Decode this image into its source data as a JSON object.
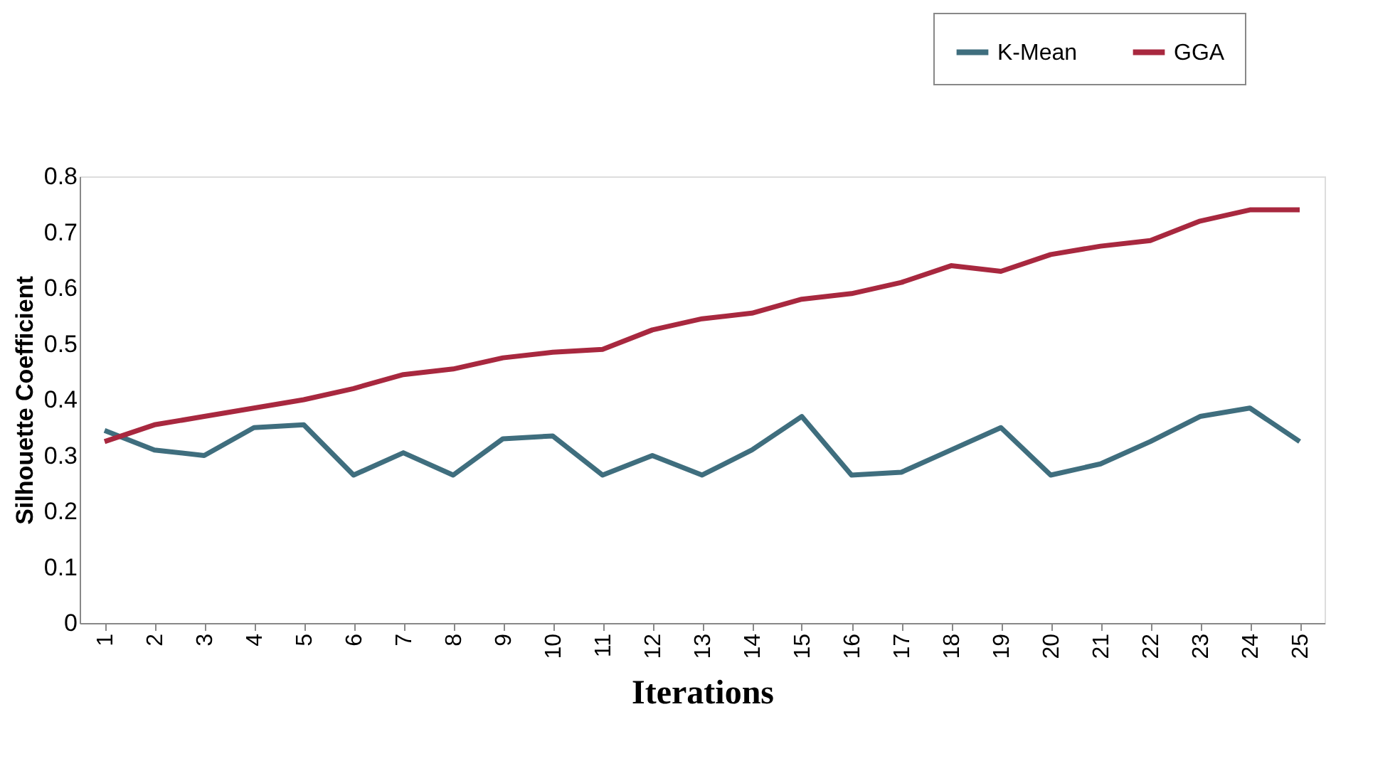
{
  "chart_data": {
    "type": "line",
    "xlabel": "Iterations",
    "ylabel": "Silhouette Coefficient",
    "categories": [
      "1",
      "2",
      "3",
      "4",
      "5",
      "6",
      "7",
      "8",
      "9",
      "10",
      "11",
      "12",
      "13",
      "14",
      "15",
      "16",
      "17",
      "18",
      "19",
      "20",
      "21",
      "22",
      "23",
      "24",
      "25"
    ],
    "series": [
      {
        "name": "K-Mean",
        "color": "#3f6e7e",
        "values": [
          0.345,
          0.31,
          0.3,
          0.35,
          0.355,
          0.265,
          0.305,
          0.265,
          0.33,
          0.335,
          0.265,
          0.3,
          0.265,
          0.31,
          0.37,
          0.265,
          0.27,
          0.31,
          0.35,
          0.265,
          0.285,
          0.325,
          0.37,
          0.385,
          0.325
        ]
      },
      {
        "name": "GGA",
        "color": "#a8283f",
        "values": [
          0.325,
          0.355,
          0.37,
          0.385,
          0.4,
          0.42,
          0.445,
          0.455,
          0.475,
          0.485,
          0.49,
          0.525,
          0.545,
          0.555,
          0.58,
          0.59,
          0.61,
          0.64,
          0.63,
          0.66,
          0.675,
          0.685,
          0.72,
          0.74,
          0.74
        ]
      }
    ],
    "ylim": [
      0,
      0.8
    ],
    "yticks": [
      0,
      0.1,
      0.2,
      0.3,
      0.4,
      0.5,
      0.6,
      0.7,
      0.8
    ],
    "grid": false,
    "legend": "top right",
    "marker": "none",
    "line_style": "solid"
  }
}
